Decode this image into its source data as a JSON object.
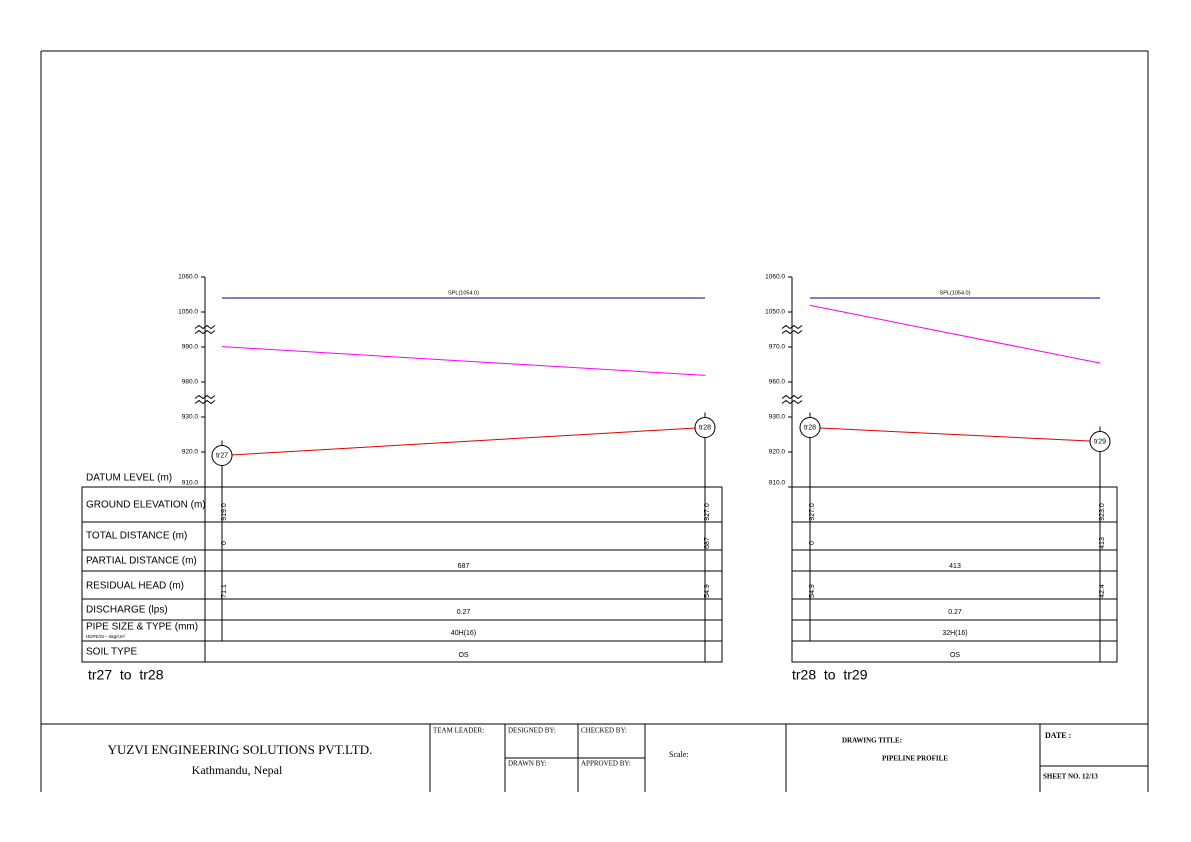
{
  "profiles": [
    {
      "caption": "tr27  to  tr28",
      "axis_ticks": [
        {
          "value": 910,
          "label": "910.0"
        },
        {
          "value": 920,
          "label": "920.0"
        },
        {
          "value": 930,
          "label": "930.0"
        },
        {
          "value": 980,
          "label": "980.0"
        },
        {
          "value": 990,
          "label": "990.0"
        },
        {
          "value": 1050,
          "label": "1050.0"
        },
        {
          "value": 1060,
          "label": "1060.0"
        }
      ],
      "spl": {
        "value": 1054,
        "label": "SPL(1054.0)"
      },
      "nodes": [
        {
          "name": "tr27",
          "ground": {
            "value": 919,
            "label": "919.0"
          },
          "total_distance": 0,
          "residual_head": 71.1
        },
        {
          "name": "tr28",
          "ground": {
            "value": 927,
            "label": "927.0"
          },
          "total_distance": 687,
          "residual_head": 54.9
        }
      ],
      "partial_distance": 687,
      "discharge": 0.27,
      "pipe": "40H(16)",
      "soil": "OS"
    },
    {
      "caption": "tr28  to  tr29",
      "axis_ticks": [
        {
          "value": 910,
          "label": "910.0"
        },
        {
          "value": 920,
          "label": "920.0"
        },
        {
          "value": 930,
          "label": "930.0"
        },
        {
          "value": 960,
          "label": "960.0"
        },
        {
          "value": 970,
          "label": "970.0"
        },
        {
          "value": 1050,
          "label": "1050.0"
        },
        {
          "value": 1060,
          "label": "1060.0"
        }
      ],
      "spl": {
        "value": 1054,
        "label": "SPL(1054.0)"
      },
      "nodes": [
        {
          "name": "tr28",
          "ground": {
            "value": 927,
            "label": "927.0"
          },
          "total_distance": 0,
          "residual_head": 54.9
        },
        {
          "name": "tr29",
          "ground": {
            "value": 923,
            "label": "923.0"
          },
          "total_distance": 413,
          "residual_head": 42.4
        }
      ],
      "partial_distance": 413,
      "discharge": 0.27,
      "pipe": "32H(16)",
      "soil": "OS"
    }
  ],
  "row_labels": {
    "datum": "DATUM LEVEL (m)",
    "ground": "GROUND ELEVATION (m)",
    "total": "TOTAL DISTANCE (m)",
    "partial": "PARTIAL DISTANCE (m)",
    "residual": "RESIDUAL HEAD (m)",
    "discharge": "DISCHARGE (lps)",
    "pipe": "PIPE SIZE & TYPE (mm)",
    "pipe_note": "HDPE/SI – 6kg/cm²",
    "soil": "SOIL TYPE"
  },
  "title_block": {
    "company": "YUZVI ENGINEERING SOLUTIONS PVT.LTD.",
    "address": "Kathmandu, Nepal",
    "team_leader": "TEAM LEADER:",
    "designed_by": "DESIGNED BY:",
    "checked_by": "CHECKED BY:",
    "drawn_by": "DRAWN BY:",
    "approved_by": "APPROVED BY:",
    "scale": "Scale:",
    "drawing_title": "DRAWING TITLE:",
    "drawing_name": "PIPELINE PROFILE",
    "date": "DATE :",
    "sheet_no": "SHEET NO. 12/13"
  }
}
